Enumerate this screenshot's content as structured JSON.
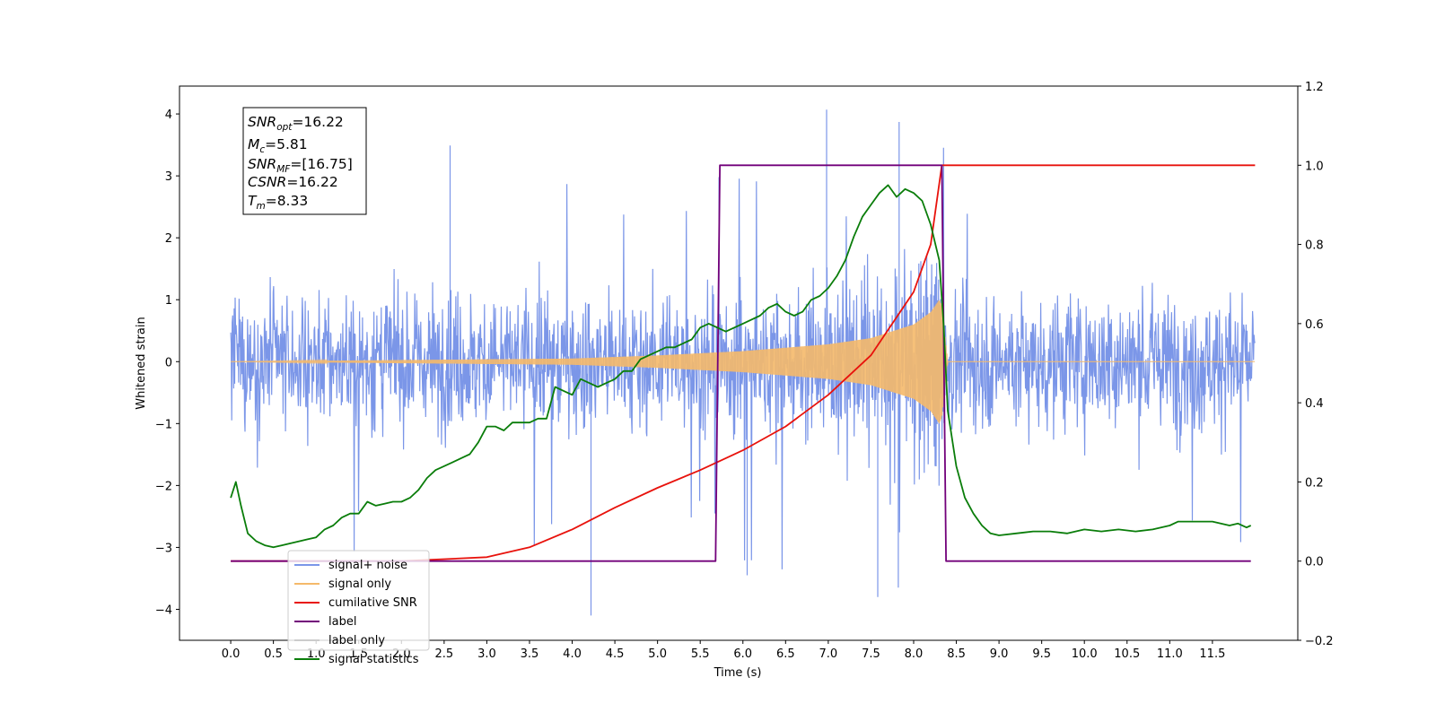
{
  "chart_data": {
    "type": "line",
    "xlabel": "Time (s)",
    "ylabel": "Whitened strain",
    "xlim": [
      -0.6,
      12.5
    ],
    "ylim": [
      -4.5,
      4.45
    ],
    "y2lim": [
      -0.2,
      1.2
    ],
    "grid": false,
    "legend_position": "lower-left",
    "x_ticks": [
      "0.0",
      "0.5",
      "1.0",
      "1.5",
      "2.0",
      "2.5",
      "3.0",
      "3.5",
      "4.0",
      "4.5",
      "5.0",
      "5.5",
      "6.0",
      "6.5",
      "7.0",
      "7.5",
      "8.0",
      "8.5",
      "9.0",
      "9.5",
      "10.0",
      "10.5",
      "11.0",
      "11.5"
    ],
    "y_ticks": [
      "4",
      "3",
      "2",
      "1",
      "0",
      "−1",
      "−2",
      "−3",
      "−4"
    ],
    "y2_ticks": [
      "1.2",
      "1.0",
      "0.8",
      "0.6",
      "0.4",
      "0.2",
      "0.0",
      "−0.2"
    ],
    "annotation": {
      "snr_opt": "=16.22",
      "m_c": "=5.81",
      "snr_mf": "=[16.75]",
      "csnr": "=16.22",
      "t_m": "=8.33"
    },
    "series": [
      {
        "name": "signal+ noise",
        "axis": "left",
        "color": "#7b96e8",
        "t_range": [
          0.0,
          12.0
        ],
        "noise_band": [
          -2.2,
          2.2
        ],
        "spikes": [
          [
            6.98,
            4.07
          ],
          [
            7.83,
            3.87
          ],
          [
            2.57,
            3.49
          ],
          [
            4.22,
            -4.1
          ],
          [
            7.58,
            -3.8
          ],
          [
            6.05,
            -3.45
          ],
          [
            7.82,
            -3.65
          ],
          [
            5.72,
            2.98
          ]
        ]
      },
      {
        "name": "signal only",
        "axis": "left",
        "color": "#f5b96a",
        "envelope": {
          "t": [
            0.0,
            4.0,
            5.0,
            6.0,
            7.0,
            7.5,
            8.0,
            8.2,
            8.3,
            8.33,
            8.4,
            12.0
          ],
          "amp": [
            0.0,
            0.05,
            0.1,
            0.17,
            0.28,
            0.38,
            0.6,
            0.8,
            1.0,
            0.9,
            0.0,
            0.0
          ]
        }
      },
      {
        "name": "cumilative SNR",
        "axis": "right",
        "color": "#e8120c",
        "x": [
          0.0,
          2.0,
          3.0,
          3.5,
          4.0,
          4.5,
          5.0,
          5.5,
          6.0,
          6.5,
          7.0,
          7.5,
          8.0,
          8.2,
          8.33,
          12.0
        ],
        "y": [
          0.0,
          0.0,
          0.01,
          0.035,
          0.08,
          0.135,
          0.185,
          0.23,
          0.28,
          0.34,
          0.42,
          0.52,
          0.68,
          0.8,
          1.0,
          1.0
        ]
      },
      {
        "name": "label",
        "axis": "right",
        "color": "#72007a",
        "x": [
          0.0,
          5.68,
          5.73,
          8.33,
          8.38,
          11.95
        ],
        "y": [
          0.0,
          0.0,
          1.0,
          1.0,
          0.0,
          0.0
        ]
      },
      {
        "name": "label only",
        "axis": "right",
        "color": "#cccccc",
        "x": [],
        "y": []
      },
      {
        "name": "signal statistics",
        "axis": "right",
        "color": "#0a7d0a",
        "x": [
          0.0,
          0.06,
          0.12,
          0.2,
          0.3,
          0.4,
          0.5,
          0.6,
          0.7,
          0.8,
          0.9,
          1.0,
          1.1,
          1.2,
          1.3,
          1.4,
          1.5,
          1.6,
          1.7,
          1.8,
          1.9,
          2.0,
          2.1,
          2.2,
          2.3,
          2.4,
          2.5,
          2.6,
          2.7,
          2.8,
          2.9,
          3.0,
          3.1,
          3.2,
          3.3,
          3.4,
          3.5,
          3.6,
          3.7,
          3.8,
          3.9,
          4.0,
          4.1,
          4.2,
          4.3,
          4.4,
          4.5,
          4.6,
          4.7,
          4.8,
          4.9,
          5.0,
          5.1,
          5.2,
          5.3,
          5.4,
          5.5,
          5.6,
          5.7,
          5.8,
          5.9,
          6.0,
          6.1,
          6.2,
          6.3,
          6.4,
          6.5,
          6.6,
          6.7,
          6.8,
          6.9,
          7.0,
          7.1,
          7.2,
          7.3,
          7.4,
          7.5,
          7.6,
          7.7,
          7.8,
          7.9,
          8.0,
          8.1,
          8.2,
          8.3,
          8.35,
          8.4,
          8.5,
          8.6,
          8.7,
          8.8,
          8.9,
          9.0,
          9.2,
          9.4,
          9.6,
          9.8,
          10.0,
          10.2,
          10.4,
          10.6,
          10.8,
          11.0,
          11.1,
          11.3,
          11.5,
          11.7,
          11.8,
          11.9,
          11.95
        ],
        "y": [
          0.16,
          0.2,
          0.14,
          0.07,
          0.05,
          0.04,
          0.035,
          0.04,
          0.045,
          0.05,
          0.055,
          0.06,
          0.08,
          0.09,
          0.11,
          0.12,
          0.12,
          0.15,
          0.14,
          0.145,
          0.15,
          0.15,
          0.16,
          0.18,
          0.21,
          0.23,
          0.24,
          0.25,
          0.26,
          0.27,
          0.3,
          0.34,
          0.34,
          0.33,
          0.35,
          0.35,
          0.35,
          0.36,
          0.36,
          0.44,
          0.43,
          0.42,
          0.46,
          0.45,
          0.44,
          0.45,
          0.46,
          0.48,
          0.48,
          0.51,
          0.52,
          0.53,
          0.54,
          0.54,
          0.55,
          0.56,
          0.59,
          0.6,
          0.59,
          0.58,
          0.59,
          0.6,
          0.61,
          0.62,
          0.64,
          0.65,
          0.63,
          0.62,
          0.63,
          0.66,
          0.67,
          0.69,
          0.72,
          0.76,
          0.82,
          0.87,
          0.9,
          0.93,
          0.95,
          0.92,
          0.94,
          0.93,
          0.91,
          0.85,
          0.76,
          0.6,
          0.38,
          0.24,
          0.16,
          0.12,
          0.09,
          0.07,
          0.065,
          0.07,
          0.075,
          0.075,
          0.07,
          0.08,
          0.075,
          0.08,
          0.075,
          0.08,
          0.09,
          0.1,
          0.1,
          0.1,
          0.09,
          0.095,
          0.085,
          0.09
        ]
      }
    ]
  }
}
